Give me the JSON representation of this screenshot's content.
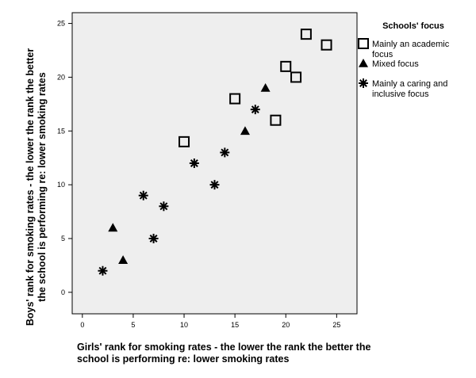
{
  "chart_data": {
    "type": "scatter",
    "title": "",
    "xlabel": [
      "Girls' rank for smoking rates  - the lower the rank the better the",
      "school is performing re: lower smoking rates"
    ],
    "ylabel": [
      "Boys' rank for smoking rates  - the lower the rank the better",
      "the school is performing re: lower smoking rates"
    ],
    "xlim": [
      -1,
      27
    ],
    "ylim": [
      -2,
      26
    ],
    "xticks": [
      0,
      5,
      10,
      15,
      20,
      25
    ],
    "yticks": [
      0,
      5,
      10,
      15,
      20,
      25
    ],
    "grid": false,
    "legend": {
      "title": "Schools' focus",
      "placement": "right"
    },
    "series": [
      {
        "name": [
          "Mainly an academic",
          "focus"
        ],
        "marker": "open-square",
        "points": [
          [
            10,
            14
          ],
          [
            15,
            18
          ],
          [
            19,
            16
          ],
          [
            20,
            21
          ],
          [
            21,
            20
          ],
          [
            22,
            24
          ],
          [
            24,
            23
          ]
        ]
      },
      {
        "name": [
          "Mixed focus"
        ],
        "marker": "filled-triangle",
        "points": [
          [
            3,
            6
          ],
          [
            4,
            3
          ],
          [
            16,
            15
          ],
          [
            18,
            19
          ]
        ]
      },
      {
        "name": [
          "Mainly a caring and",
          "inclusive focus"
        ],
        "marker": "asterisk",
        "points": [
          [
            2,
            2
          ],
          [
            6,
            9
          ],
          [
            7,
            5
          ],
          [
            8,
            8
          ],
          [
            11,
            12
          ],
          [
            13,
            10
          ],
          [
            14,
            13
          ],
          [
            17,
            17
          ]
        ]
      }
    ]
  },
  "colors": {
    "plot_background": "#eeeeee",
    "marker": "#000000"
  }
}
